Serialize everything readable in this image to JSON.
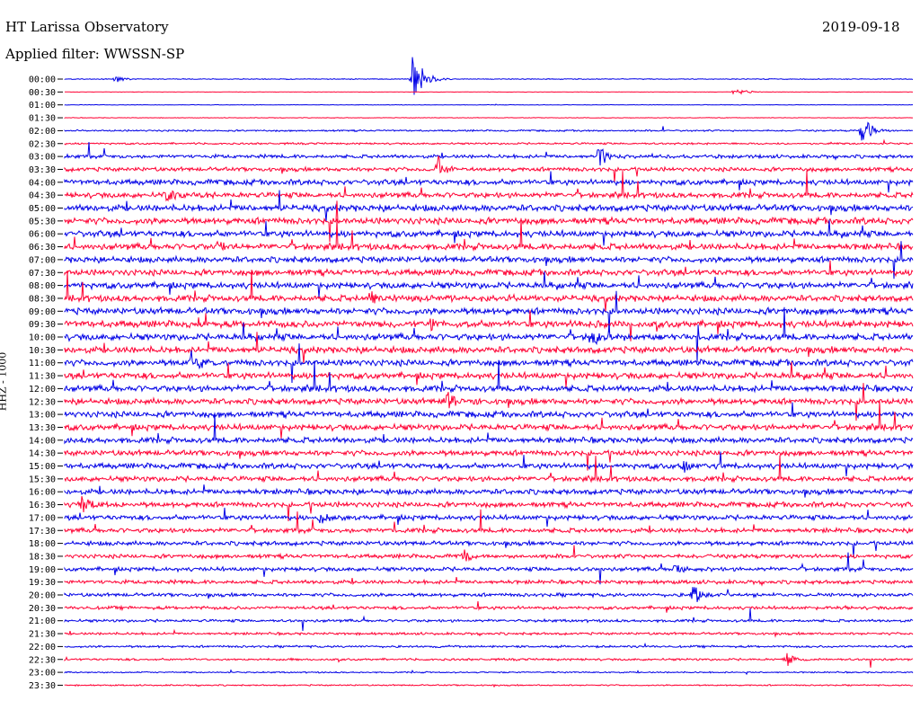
{
  "header": {
    "station": "HT Larissa Observatory",
    "filter": "Applied filter: WWSSN-SP",
    "date": "2019-09-18"
  },
  "chart_data": {
    "type": "line",
    "title": "HT Larissa Observatory",
    "subtitle": "Applied filter: WWSSN-SP",
    "date": "2019-09-18",
    "ylabel": "HHZ - 1000",
    "row_labels": [
      "00:00",
      "00:30",
      "01:00",
      "01:30",
      "02:00",
      "02:30",
      "03:00",
      "03:30",
      "04:00",
      "04:30",
      "05:00",
      "05:30",
      "06:00",
      "06:30",
      "07:00",
      "07:30",
      "08:00",
      "08:30",
      "09:00",
      "09:30",
      "10:00",
      "10:30",
      "11:00",
      "11:30",
      "12:00",
      "12:30",
      "13:00",
      "13:30",
      "14:00",
      "14:30",
      "15:00",
      "15:30",
      "16:00",
      "16:30",
      "17:00",
      "17:30",
      "18:00",
      "18:30",
      "19:00",
      "19:30",
      "20:00",
      "20:30",
      "21:00",
      "21:30",
      "22:00",
      "22:30",
      "23:00",
      "23:30"
    ],
    "trace_colors": [
      "#0000e6",
      "#ff0033"
    ],
    "series": [
      {
        "color": "#0000e6"
      },
      {
        "color": "#ff0033"
      }
    ],
    "noise_level": [
      0.3,
      0.15,
      0.2,
      0.2,
      0.6,
      0.7,
      1.3,
      1.5,
      2.0,
      2.0,
      2.4,
      2.4,
      2.3,
      2.3,
      2.2,
      2.2,
      2.3,
      2.3,
      2.4,
      2.5,
      2.4,
      2.4,
      2.3,
      2.3,
      2.3,
      2.2,
      2.2,
      2.2,
      2.1,
      2.0,
      2.0,
      1.9,
      2.0,
      1.9,
      1.8,
      1.7,
      1.6,
      1.5,
      1.5,
      1.4,
      1.3,
      1.2,
      1.0,
      0.9,
      0.8,
      0.8,
      0.5,
      0.5
    ],
    "events": [
      {
        "row": 0,
        "x": 0.41,
        "amp": 34
      },
      {
        "row": 0,
        "x": 0.06,
        "amp": 5
      },
      {
        "row": 1,
        "x": 0.79,
        "amp": 6
      },
      {
        "row": 4,
        "x": 0.94,
        "amp": 20
      },
      {
        "row": 6,
        "x": 0.63,
        "amp": 14
      },
      {
        "row": 7,
        "x": 0.44,
        "amp": 18
      },
      {
        "row": 9,
        "x": 0.12,
        "amp": 14
      },
      {
        "row": 13,
        "x": 0.18,
        "amp": 12
      },
      {
        "row": 17,
        "x": 0.36,
        "amp": 12
      },
      {
        "row": 19,
        "x": 0.43,
        "amp": 14
      },
      {
        "row": 20,
        "x": 0.62,
        "amp": 16
      },
      {
        "row": 22,
        "x": 0.15,
        "amp": 18
      },
      {
        "row": 25,
        "x": 0.45,
        "amp": 16
      },
      {
        "row": 30,
        "x": 0.73,
        "amp": 12
      },
      {
        "row": 33,
        "x": 0.02,
        "amp": 14
      },
      {
        "row": 34,
        "x": 0.3,
        "amp": 12
      },
      {
        "row": 37,
        "x": 0.47,
        "amp": 12
      },
      {
        "row": 38,
        "x": 0.72,
        "amp": 10
      },
      {
        "row": 40,
        "x": 0.74,
        "amp": 16
      },
      {
        "row": 45,
        "x": 0.85,
        "amp": 10
      }
    ]
  }
}
